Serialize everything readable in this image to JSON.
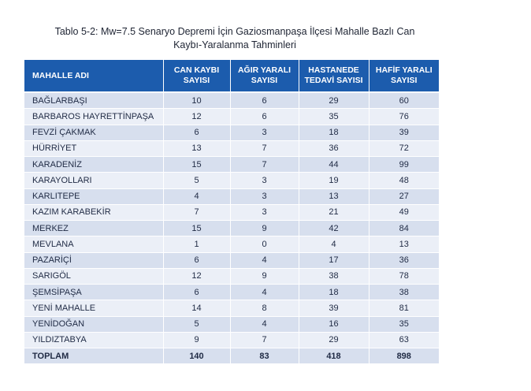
{
  "caption": {
    "line1": "Tablo 5-2: Mw=7.5 Senaryo Depremi İçin Gaziosmanpaşa İlçesi Mahalle Bazlı Can",
    "line2": "Kaybı-Yaralanma Tahminleri"
  },
  "headers": {
    "mahalle": "MAHALLE ADI",
    "can_kaybi_1": "CAN KAYBI",
    "can_kaybi_2": "SAYISI",
    "agir_1": "AĞIR YARALI",
    "agir_2": "SAYISI",
    "hastane_1": "HASTANEDE",
    "hastane_2": "TEDAVİ SAYISI",
    "hafif_1": "HAFİF YARALI",
    "hafif_2": "SAYISI"
  },
  "rows": [
    {
      "name": "BAĞLARBAŞI",
      "can": "10",
      "agir": "6",
      "hastane": "29",
      "hafif": "60"
    },
    {
      "name": "BARBAROS HAYRETTİNPAŞA",
      "can": "12",
      "agir": "6",
      "hastane": "35",
      "hafif": "76"
    },
    {
      "name": "FEVZİ ÇAKMAK",
      "can": "6",
      "agir": "3",
      "hastane": "18",
      "hafif": "39"
    },
    {
      "name": "HÜRRİYET",
      "can": "13",
      "agir": "7",
      "hastane": "36",
      "hafif": "72"
    },
    {
      "name": "KARADENİZ",
      "can": "15",
      "agir": "7",
      "hastane": "44",
      "hafif": "99"
    },
    {
      "name": "KARAYOLLARI",
      "can": "5",
      "agir": "3",
      "hastane": "19",
      "hafif": "48"
    },
    {
      "name": "KARLITEPE",
      "can": "4",
      "agir": "3",
      "hastane": "13",
      "hafif": "27"
    },
    {
      "name": "KAZIM KARABEKİR",
      "can": "7",
      "agir": "3",
      "hastane": "21",
      "hafif": "49"
    },
    {
      "name": "MERKEZ",
      "can": "15",
      "agir": "9",
      "hastane": "42",
      "hafif": "84"
    },
    {
      "name": "MEVLANA",
      "can": "1",
      "agir": "0",
      "hastane": "4",
      "hafif": "13"
    },
    {
      "name": "PAZARİÇİ",
      "can": "6",
      "agir": "4",
      "hastane": "17",
      "hafif": "36"
    },
    {
      "name": "SARIGÖL",
      "can": "12",
      "agir": "9",
      "hastane": "38",
      "hafif": "78"
    },
    {
      "name": "ŞEMSİPAŞA",
      "can": "6",
      "agir": "4",
      "hastane": "18",
      "hafif": "38"
    },
    {
      "name": "YENİ MAHALLE",
      "can": "14",
      "agir": "8",
      "hastane": "39",
      "hafif": "81"
    },
    {
      "name": "YENİDOĞAN",
      "can": "5",
      "agir": "4",
      "hastane": "16",
      "hafif": "35"
    },
    {
      "name": "YILDIZTABYA",
      "can": "9",
      "agir": "7",
      "hastane": "29",
      "hafif": "63"
    }
  ],
  "total": {
    "name": "TOPLAM",
    "can": "140",
    "agir": "83",
    "hastane": "418",
    "hafif": "898"
  },
  "colors": {
    "header_bg": "#1c5cad",
    "row_dark": "#d7dfee",
    "row_light": "#ebeff7"
  }
}
